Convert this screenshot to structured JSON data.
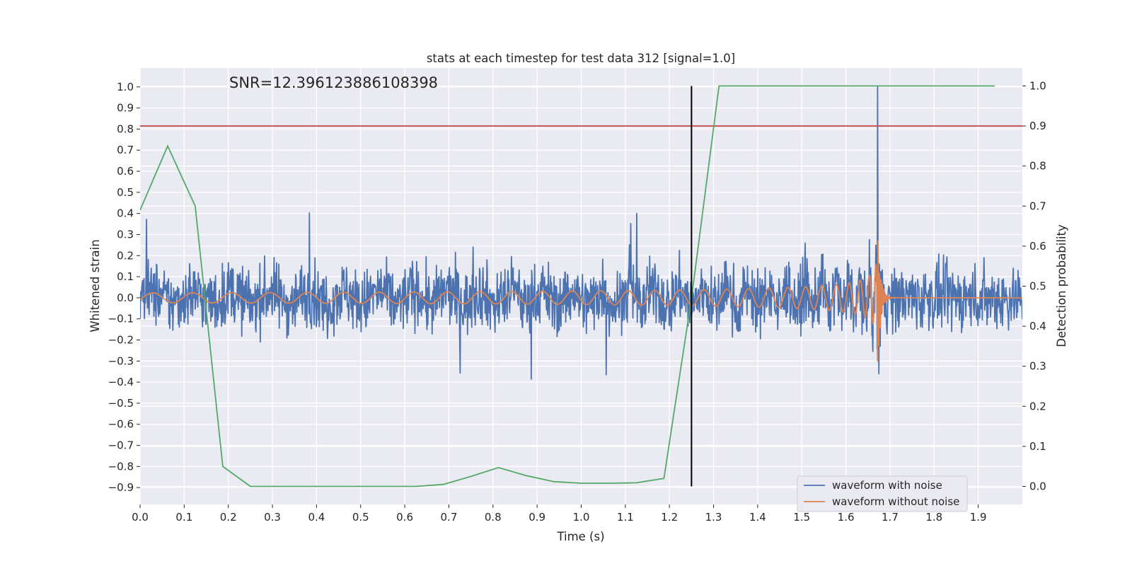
{
  "chart_data": {
    "type": "line",
    "title": "stats at each timestep for test data 312 [signal=1.0]",
    "annotation": "SNR=12.396123886108398",
    "xlabel": "Time (s)",
    "ylabel": "Whitened strain",
    "y2label": "Detection probability",
    "xlim": [
      0.0,
      2.0
    ],
    "ylim": [
      -0.98,
      1.09
    ],
    "y2lim": [
      -0.045,
      1.045
    ],
    "xticks": [
      "0.0",
      "0.1",
      "0.2",
      "0.3",
      "0.4",
      "0.5",
      "0.6",
      "0.7",
      "0.8",
      "0.9",
      "1.0",
      "1.1",
      "1.2",
      "1.3",
      "1.4",
      "1.5",
      "1.6",
      "1.7",
      "1.8",
      "1.9"
    ],
    "yticks": [
      "-0.9",
      "-0.8",
      "-0.7",
      "-0.6",
      "-0.5",
      "-0.4",
      "-0.3",
      "-0.2",
      "-0.1",
      "0.0",
      "0.1",
      "0.2",
      "0.3",
      "0.4",
      "0.5",
      "0.6",
      "0.7",
      "0.8",
      "0.9",
      "1.0"
    ],
    "y2ticks": [
      "0.0",
      "0.1",
      "0.2",
      "0.3",
      "0.4",
      "0.5",
      "0.6",
      "0.7",
      "0.8",
      "0.9",
      "1.0"
    ],
    "grid": true,
    "legend_position": "bottom-right",
    "series": [
      {
        "name": "waveform with noise",
        "color": "#4c72b0",
        "description": "dense noisy strain signal, amplitude ~0.2, spikes to 1.0 at 1.672 s"
      },
      {
        "name": "waveform without noise",
        "color": "#dd8452",
        "description": "chirp signal with growing amplitude and frequency, merger near 1.67 s"
      }
    ],
    "detection_probability": {
      "color": "#55a868",
      "axis": "right",
      "x": [
        0.0,
        0.0625,
        0.125,
        0.1875,
        0.25,
        0.3125,
        0.375,
        0.4375,
        0.5,
        0.5625,
        0.625,
        0.6875,
        0.75,
        0.8125,
        0.875,
        0.9375,
        1.0,
        1.0625,
        1.125,
        1.1875,
        1.25,
        1.3125,
        1.375,
        1.4375,
        1.5,
        1.5625,
        1.625,
        1.6875,
        1.75,
        1.8125,
        1.875,
        1.9375
      ],
      "y": [
        0.69,
        0.85,
        0.7,
        0.05,
        0.0,
        0.0,
        0.0,
        0.0,
        0.0,
        0.0,
        0.0,
        0.005,
        0.025,
        0.047,
        0.027,
        0.012,
        0.008,
        0.008,
        0.009,
        0.02,
        0.47,
        1.0,
        1.0,
        1.0,
        1.0,
        1.0,
        1.0,
        1.0,
        1.0,
        1.0,
        1.0,
        1.0
      ]
    },
    "threshold_line": {
      "axis": "right",
      "y": 0.9,
      "color": "#c44e52"
    },
    "marker_line": {
      "x": 1.25,
      "y_from": 0.0,
      "y_to": 1.0,
      "axis": "right",
      "color": "#000000"
    },
    "noisy_peak": {
      "x": 1.672,
      "y": 1.0
    },
    "merger_time": 1.67
  }
}
